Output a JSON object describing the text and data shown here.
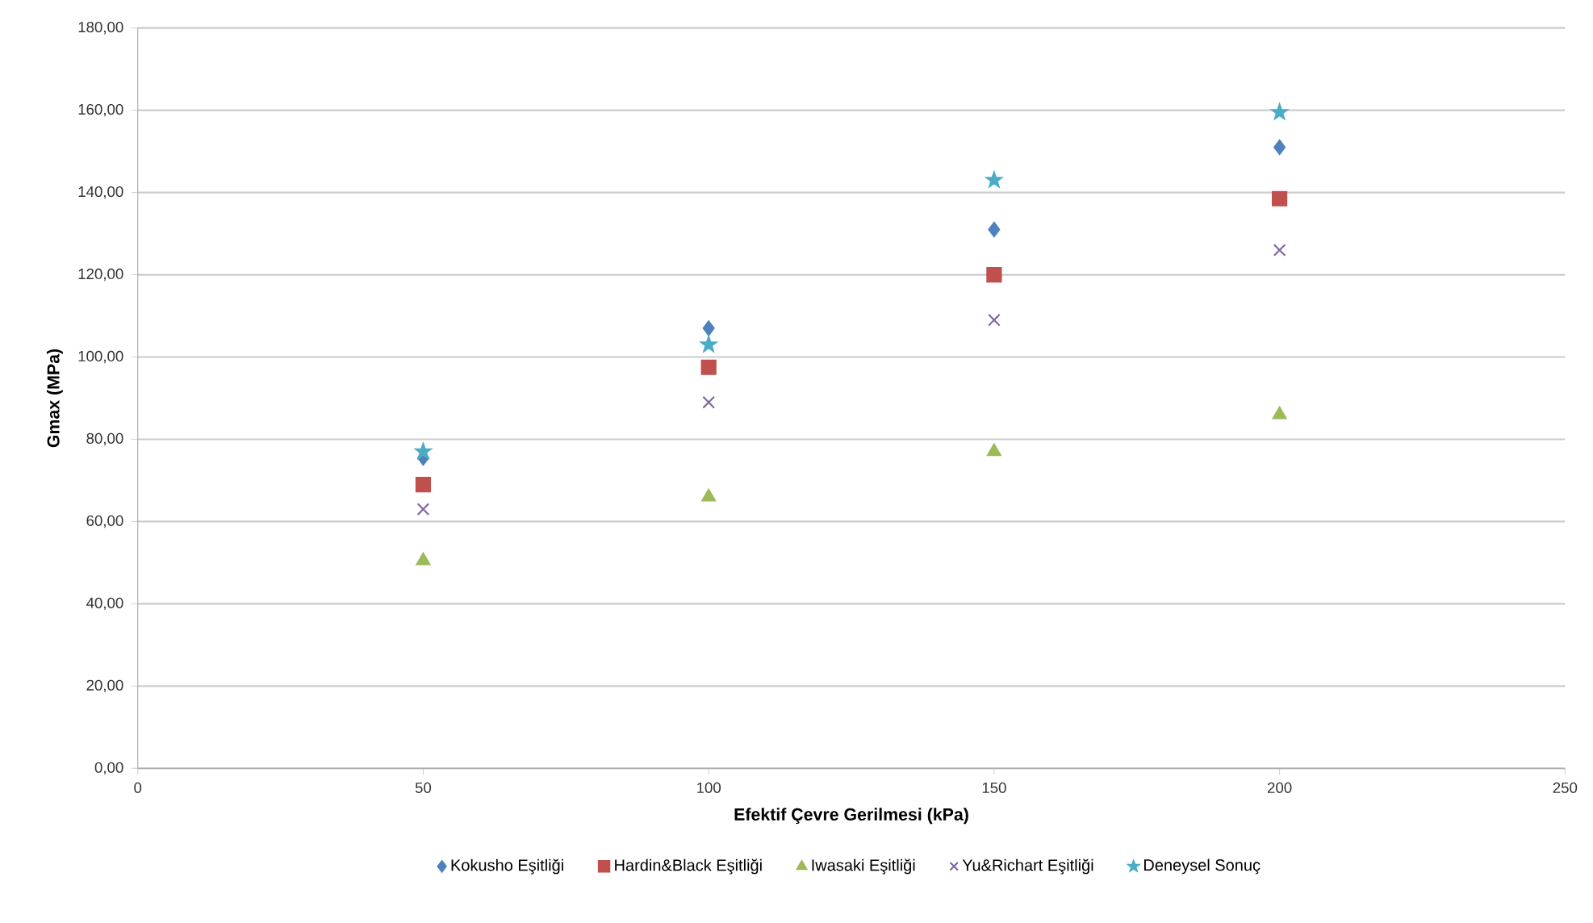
{
  "chart_data": {
    "type": "scatter",
    "xlabel": "Efektif Çevre Gerilmesi (kPa)",
    "ylabel": "Gmax (MPa)",
    "x": [
      50,
      100,
      150,
      200
    ],
    "series": [
      {
        "name": "Kokusho Eşitliği",
        "color": "#4f81bd",
        "marker": "diamond",
        "values": [
          75.5,
          107,
          131,
          151
        ]
      },
      {
        "name": "Hardin&Black Eşitliği",
        "color": "#c0504d",
        "marker": "square",
        "values": [
          69,
          97.5,
          120,
          138.5
        ]
      },
      {
        "name": "Iwasaki Eşitliği",
        "color": "#9bbb59",
        "marker": "triangle",
        "values": [
          50.5,
          66,
          77,
          86
        ]
      },
      {
        "name": "Yu&Richart Eşitliği",
        "color": "#8064a2",
        "marker": "cross",
        "values": [
          63,
          89,
          109,
          126
        ]
      },
      {
        "name": "Deneysel Sonuç",
        "color": "#4bacc6",
        "marker": "star",
        "values": [
          77,
          103,
          143,
          159.5
        ]
      }
    ],
    "xlim": [
      0,
      250
    ],
    "xticks": [
      0,
      50,
      100,
      150,
      200,
      250
    ],
    "ylim": [
      0,
      180
    ],
    "yticks": [
      {
        "value": 0,
        "label": "0,00"
      },
      {
        "value": 20,
        "label": "20,00"
      },
      {
        "value": 40,
        "label": "40,00"
      },
      {
        "value": 60,
        "label": "60,00"
      },
      {
        "value": 80,
        "label": "80,00"
      },
      {
        "value": 100,
        "label": "100,00"
      },
      {
        "value": 120,
        "label": "120,00"
      },
      {
        "value": 140,
        "label": "140,00"
      },
      {
        "value": 160,
        "label": "160,00"
      },
      {
        "value": 180,
        "label": "180,00"
      }
    ],
    "grid": "y",
    "legend": "bottom"
  }
}
